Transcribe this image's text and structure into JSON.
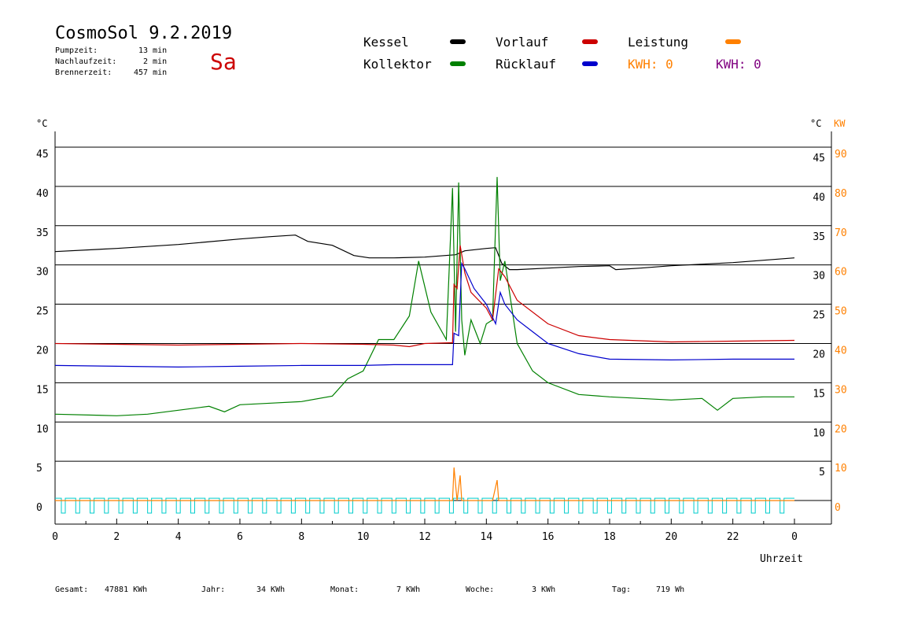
{
  "header": {
    "title": "CosmoSol 9.2.2019",
    "day": "Sa",
    "pump_label": "Pumpzeit:",
    "pump_value": "13 min",
    "after_label": "Nachlaufzeit:",
    "after_value": "2 min",
    "burner_label": "Brennerzeit:",
    "burner_value": "457 min"
  },
  "legend": {
    "kessel": "Kessel",
    "kollektor": "Kollektor",
    "vorlauf": "Vorlauf",
    "ruecklauf": "Rücklauf",
    "leistung": "Leistung",
    "kwh1": "KWH: 0",
    "kwh2": "KWH: 0"
  },
  "colors": {
    "kessel": "#000000",
    "kollektor": "#008000",
    "vorlauf": "#cc0000",
    "ruecklauf": "#0000cc",
    "leistung": "#ff8000",
    "kwh2": "#800080",
    "pump": "#00cccc"
  },
  "footer": {
    "gesamt_label": "Gesamt:",
    "gesamt_value": "47881 KWh",
    "jahr_label": "Jahr:",
    "jahr_value": "34 KWh",
    "monat_label": "Monat:",
    "monat_value": "7 KWh",
    "woche_label": "Woche:",
    "woche_value": "3 KWh",
    "tag_label": "Tag:",
    "tag_value": "719 Wh"
  },
  "chart_data": {
    "type": "line",
    "xlabel": "Uhrzeit",
    "ylabel_left": "°C",
    "ylabel_right": "°C",
    "ylabel_right2": "KW",
    "xlim": [
      0,
      24
    ],
    "ylim": [
      -3,
      47
    ],
    "x_ticks": [
      "0",
      "2",
      "4",
      "6",
      "8",
      "10",
      "12",
      "14",
      "16",
      "18",
      "20",
      "22",
      "0"
    ],
    "y_ticks_left": [
      0,
      5,
      10,
      15,
      20,
      25,
      30,
      35,
      40,
      45
    ],
    "y_ticks_right": [
      5,
      10,
      15,
      20,
      25,
      30,
      35,
      40,
      45
    ],
    "y_ticks_kw": [
      0,
      10,
      20,
      30,
      40,
      50,
      60,
      70,
      80,
      90
    ],
    "grid": true,
    "series": [
      {
        "name": "Kessel",
        "color": "#000000",
        "x": [
          0,
          2,
          4,
          6,
          7,
          7.8,
          8.2,
          9,
          9.7,
          10.2,
          11,
          12,
          13,
          13.3,
          14,
          14.3,
          14.5,
          14.75,
          15,
          16,
          17,
          18,
          18.2,
          19,
          20,
          21,
          22,
          23,
          24
        ],
        "y": [
          31.7,
          32.1,
          32.6,
          33.3,
          33.6,
          33.8,
          33.0,
          32.5,
          31.2,
          30.9,
          30.9,
          31.0,
          31.3,
          31.8,
          32.1,
          32.2,
          30.2,
          29.4,
          29.4,
          29.6,
          29.8,
          29.9,
          29.4,
          29.6,
          29.9,
          30.1,
          30.3,
          30.6,
          30.9
        ]
      },
      {
        "name": "Kollektor",
        "color": "#008000",
        "x": [
          0,
          2,
          3,
          4,
          5,
          5.5,
          6,
          7,
          8,
          9,
          9.5,
          10,
          10.5,
          11,
          11.5,
          11.8,
          12.2,
          12.7,
          12.9,
          13.0,
          13.1,
          13.2,
          13.3,
          13.5,
          13.8,
          14.0,
          14.2,
          14.35,
          14.45,
          14.6,
          15,
          15.5,
          16,
          17,
          18,
          19,
          20,
          21,
          21.5,
          22,
          23,
          24
        ],
        "y": [
          11.0,
          10.8,
          11.0,
          11.5,
          12.0,
          11.3,
          12.2,
          12.4,
          12.6,
          13.3,
          15.5,
          16.5,
          20.5,
          20.5,
          23.5,
          30.5,
          24.0,
          20.5,
          39.8,
          21.5,
          40.5,
          23.0,
          18.5,
          23.0,
          20.0,
          22.5,
          23.0,
          41.2,
          28.0,
          30.5,
          20.0,
          16.5,
          15.0,
          13.5,
          13.2,
          13.0,
          12.8,
          13.0,
          11.5,
          13.0,
          13.2,
          13.2
        ]
      },
      {
        "name": "Vorlauf",
        "color": "#cc0000",
        "x": [
          0,
          2,
          4,
          6,
          8,
          10,
          11,
          11.5,
          12,
          12.9,
          12.95,
          13.05,
          13.15,
          13.3,
          13.5,
          14.0,
          14.2,
          14.4,
          14.6,
          15,
          16,
          17,
          18,
          20,
          22,
          24
        ],
        "y": [
          20.0,
          19.9,
          19.8,
          19.9,
          20.0,
          19.9,
          19.8,
          19.6,
          20.0,
          20.1,
          27.5,
          27.0,
          32.5,
          29.0,
          26.5,
          24.5,
          23.0,
          29.5,
          28.5,
          25.5,
          22.5,
          21.0,
          20.5,
          20.2,
          20.3,
          20.4
        ]
      },
      {
        "name": "Rücklauf",
        "color": "#0000cc",
        "x": [
          0,
          2,
          4,
          6,
          8,
          10,
          11,
          12,
          12.9,
          12.95,
          13.1,
          13.2,
          13.3,
          13.6,
          14.0,
          14.3,
          14.45,
          14.6,
          15,
          15.5,
          16,
          17,
          18,
          20,
          22,
          24
        ],
        "y": [
          17.2,
          17.1,
          17.0,
          17.1,
          17.2,
          17.2,
          17.3,
          17.3,
          17.3,
          21.3,
          21.0,
          30.2,
          29.5,
          27.0,
          25.0,
          22.5,
          26.5,
          25.0,
          23.0,
          21.5,
          20.0,
          18.7,
          18.0,
          17.9,
          18.0,
          18.0
        ]
      },
      {
        "name": "Leistung",
        "color": "#ff8000",
        "x": [
          0,
          12.85,
          12.9,
          12.95,
          13.05,
          13.15,
          13.2,
          13.3,
          14.2,
          14.35,
          14.4,
          14.5,
          24
        ],
        "y": [
          0,
          0,
          0,
          4.2,
          0,
          3.2,
          0,
          0,
          0,
          2.6,
          0,
          0,
          0
        ]
      }
    ],
    "pump_pulses": 51,
    "pump_level": 0.3
  }
}
